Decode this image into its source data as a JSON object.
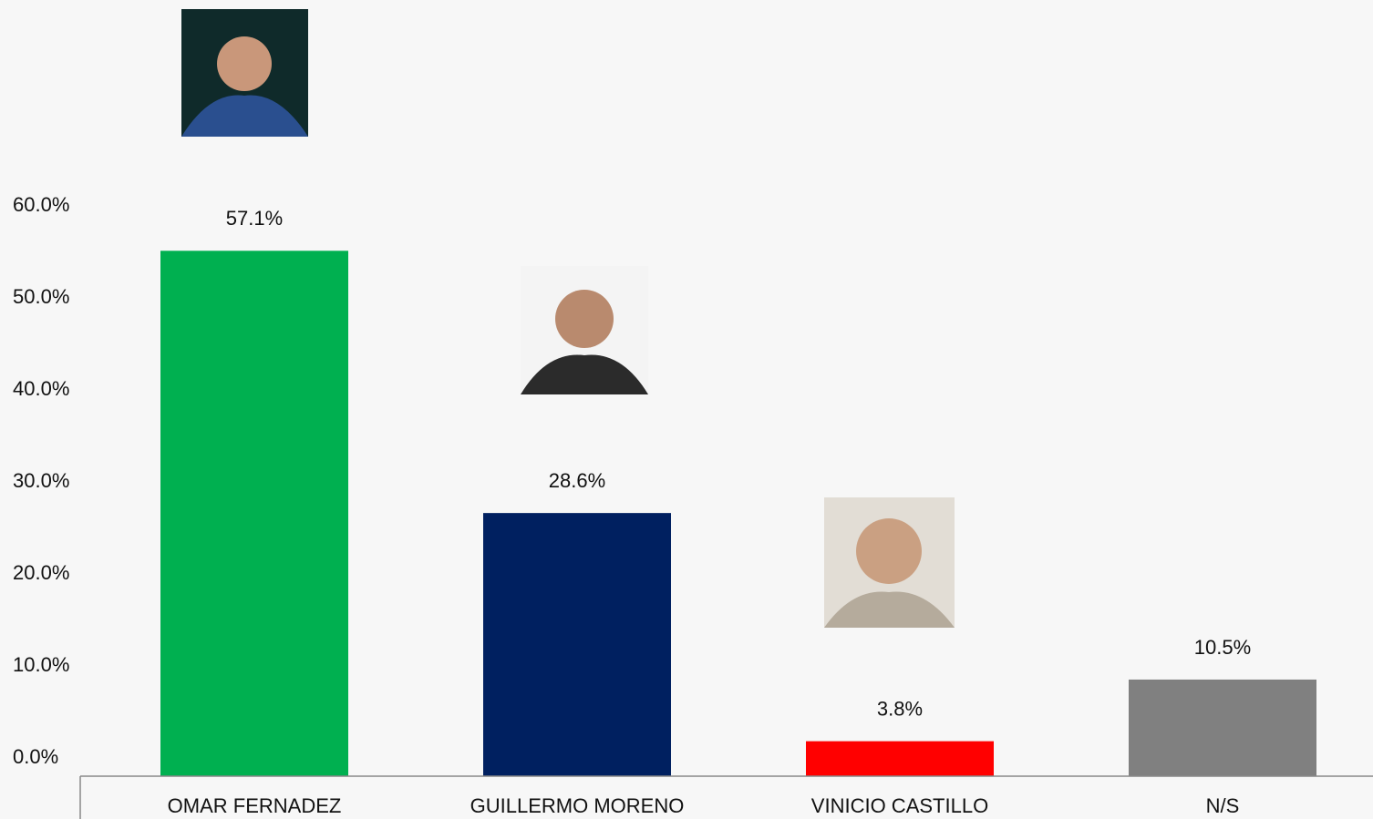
{
  "chart_data": {
    "type": "bar",
    "categories": [
      "OMAR FERNADEZ",
      "GUILLERMO MORENO",
      "VINICIO CASTILLO",
      "N/S"
    ],
    "values": [
      57.1,
      28.6,
      3.8,
      10.5
    ],
    "value_labels": [
      "57.1%",
      "28.6%",
      "3.8%",
      "10.5%"
    ],
    "colors": [
      "#00b050",
      "#002060",
      "#ff0000",
      "#808080"
    ],
    "ylim": [
      0,
      60
    ],
    "yticks": [
      {
        "value": 0,
        "label": "0.0%"
      },
      {
        "value": 10,
        "label": "10.0%"
      },
      {
        "value": 20,
        "label": "20.0%"
      },
      {
        "value": 30,
        "label": "30.0%"
      },
      {
        "value": 40,
        "label": "40.0%"
      },
      {
        "value": 50,
        "label": "50.0%"
      },
      {
        "value": 60,
        "label": "60.0%"
      }
    ],
    "grid": false
  }
}
